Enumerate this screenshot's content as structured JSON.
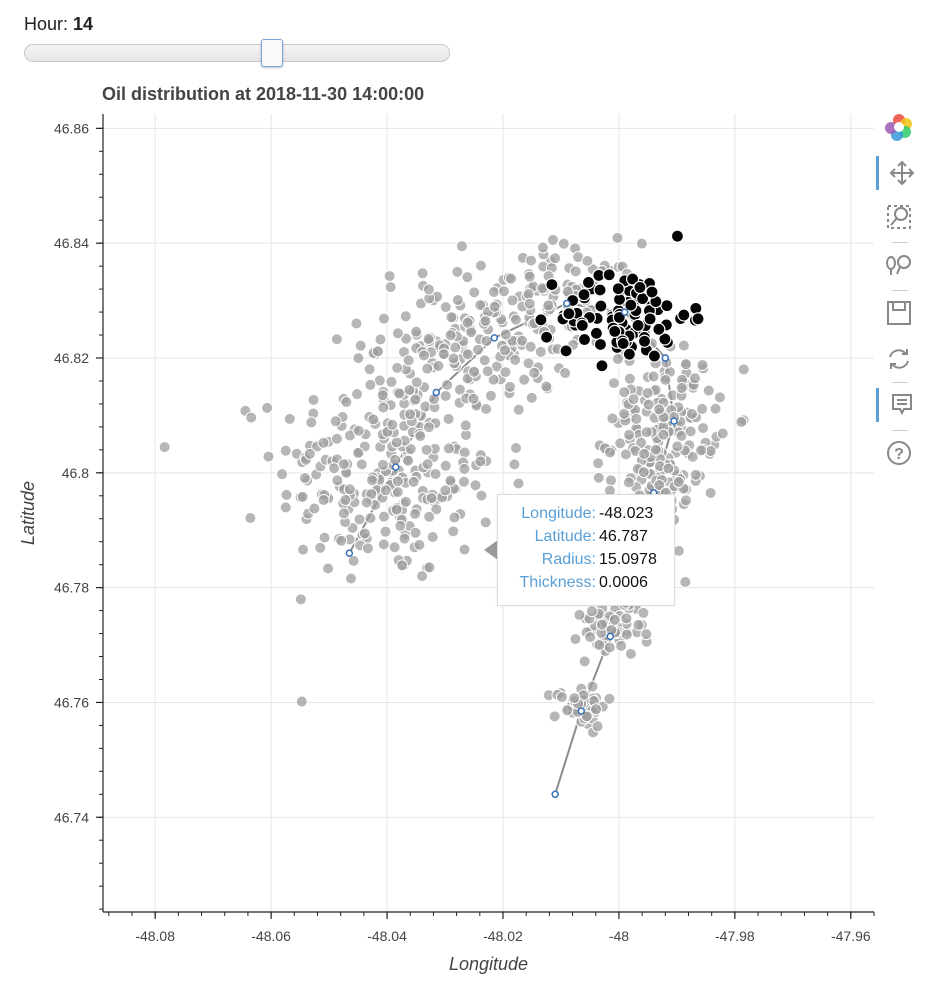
{
  "slider": {
    "label": "Hour:",
    "value": "14",
    "min": 0,
    "max": 24,
    "current": 14
  },
  "chart_data": {
    "type": "scatter",
    "title": "Oil distribution at 2018-11-30 14:00:00",
    "xlabel": "Longitude",
    "ylabel": "Latitude",
    "xlim": [
      -48.089,
      -47.956
    ],
    "ylim": [
      46.7235,
      46.8625
    ],
    "x_ticks": [
      -48.08,
      -48.06,
      -48.04,
      -48.02,
      -48.0,
      -47.98,
      -47.96
    ],
    "x_tick_labels": [
      "-48.08",
      "-48.06",
      "-48.04",
      "-48.02",
      "-48",
      "-47.98",
      "-47.96"
    ],
    "y_ticks": [
      46.74,
      46.76,
      46.78,
      46.8,
      46.82,
      46.84,
      46.86
    ],
    "y_tick_labels": [
      "46.74",
      "46.76",
      "46.78",
      "46.8",
      "46.82",
      "46.84",
      "46.86"
    ],
    "grid": true,
    "trajectory_left": {
      "x": [
        -48.0465,
        -48.0385,
        -48.0315,
        -48.0215,
        -48.009,
        -47.999,
        -47.992
      ],
      "y": [
        46.786,
        46.801,
        46.814,
        46.8235,
        46.8295,
        46.828,
        46.82
      ]
    },
    "trajectory_right": {
      "x": [
        -47.992,
        -47.9905,
        -47.994,
        -47.998,
        -48.0015,
        -48.0065,
        -48.011
      ],
      "y": [
        46.82,
        46.809,
        46.7965,
        46.7815,
        46.7715,
        46.7585,
        46.744
      ]
    },
    "gray_clusters": [
      {
        "cx": -48.04,
        "cy": 46.8,
        "sx": 0.0095,
        "sy": 0.0095,
        "n": 260
      },
      {
        "cx": -48.026,
        "cy": 46.823,
        "sx": 0.009,
        "sy": 0.0065,
        "n": 160
      },
      {
        "cx": -48.009,
        "cy": 46.83,
        "sx": 0.006,
        "sy": 0.005,
        "n": 80
      },
      {
        "cx": -47.992,
        "cy": 46.81,
        "sx": 0.0045,
        "sy": 0.006,
        "n": 140
      },
      {
        "cx": -47.994,
        "cy": 46.796,
        "sx": 0.004,
        "sy": 0.005,
        "n": 80
      },
      {
        "cx": -47.9995,
        "cy": 46.782,
        "sx": 0.0035,
        "sy": 0.0035,
        "n": 55
      },
      {
        "cx": -48.0015,
        "cy": 46.772,
        "sx": 0.0028,
        "sy": 0.0022,
        "n": 50
      },
      {
        "cx": -48.0065,
        "cy": 46.7595,
        "sx": 0.0022,
        "sy": 0.0018,
        "n": 55
      }
    ],
    "black_cluster": {
      "cx": -47.999,
      "cy": 46.8275,
      "sx": 0.0055,
      "sy": 0.004,
      "n": 95
    },
    "point_colors": {
      "gray": "#9e9e9e",
      "black": "#050505",
      "trajectory": "#8c8c8c",
      "marker": "#3a72b8"
    }
  },
  "tooltip": {
    "rows": [
      {
        "key": "Longitude:",
        "value": "-48.023"
      },
      {
        "key": "Latitude:",
        "value": "46.787"
      },
      {
        "key": "Radius:",
        "value": "15.0978"
      },
      {
        "key": "Thickness:",
        "value": "0.0006"
      }
    ]
  },
  "toolbar": {
    "tools": [
      {
        "name": "bokeh-logo-icon",
        "icon": "logo"
      },
      {
        "name": "pan-tool-icon",
        "icon": "✥",
        "active": true
      },
      {
        "name": "box-zoom-icon",
        "icon": "box-zoom"
      },
      {
        "name": "wheel-zoom-icon",
        "icon": "wheel-zoom"
      },
      {
        "name": "save-icon",
        "icon": "save"
      },
      {
        "name": "reset-icon",
        "icon": "⟳"
      },
      {
        "name": "hover-icon",
        "icon": "hover",
        "active": true
      },
      {
        "name": "help-icon",
        "icon": "?"
      }
    ]
  }
}
